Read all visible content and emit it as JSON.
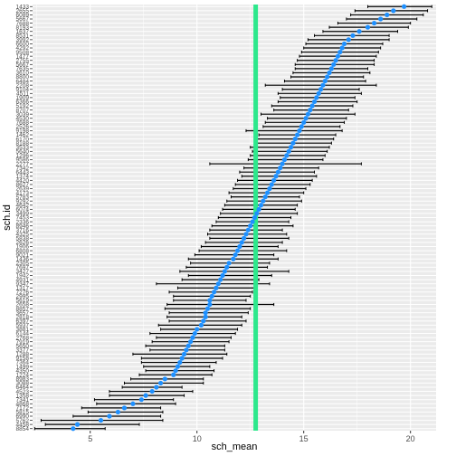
{
  "chart_data": {
    "type": "errorbar-dot",
    "xlabel": "sch_mean",
    "ylabel": "sch.id",
    "xlim": [
      2.3,
      21.2
    ],
    "x_ticks": [
      5,
      10,
      15,
      20
    ],
    "x_tick_labels": [
      "5",
      "10",
      "15",
      "20"
    ],
    "reference_line": {
      "x": 12.75,
      "orientation": "vertical"
    },
    "colors": {
      "panel": "#ebebeb",
      "grid": "#ffffff",
      "point": "#1e90ff",
      "errorbar": "#000000",
      "reference_line": "#2de88c"
    },
    "grid": true,
    "legend": "none",
    "schools": [
      {
        "id": "8854",
        "mean": 4.2,
        "lo": 2.4,
        "hi": 5.7
      },
      {
        "id": "4458",
        "mean": 4.4,
        "lo": 2.9,
        "hi": 7.3
      },
      {
        "id": "5762",
        "mean": 5.5,
        "lo": 2.7,
        "hi": 8.4
      },
      {
        "id": "6990",
        "mean": 5.9,
        "lo": 4.2,
        "hi": 8.3
      },
      {
        "id": "5815",
        "mean": 6.3,
        "lo": 4.9,
        "hi": 8.4
      },
      {
        "id": "7172",
        "mean": 6.6,
        "lo": 4.6,
        "hi": 8.3
      },
      {
        "id": "4868",
        "mean": 7.0,
        "lo": 5.3,
        "hi": 9.0
      },
      {
        "id": "7341",
        "mean": 7.4,
        "lo": 5.2,
        "hi": 8.9
      },
      {
        "id": "1358",
        "mean": 7.6,
        "lo": 5.9,
        "hi": 9.4
      },
      {
        "id": "4523",
        "mean": 7.9,
        "lo": 5.9,
        "hi": 9.8
      },
      {
        "id": "6464",
        "mean": 8.1,
        "lo": 6.5,
        "hi": 9.3
      },
      {
        "id": "3088",
        "mean": 8.3,
        "lo": 6.6,
        "hi": 10.3
      },
      {
        "id": "8983",
        "mean": 8.5,
        "lo": 6.9,
        "hi": 10.3
      },
      {
        "id": "1224",
        "mean": 8.9,
        "lo": 7.3,
        "hi": 10.7
      },
      {
        "id": "4350",
        "mean": 9.0,
        "lo": 7.6,
        "hi": 10.8
      },
      {
        "id": "1499",
        "mean": 9.1,
        "lo": 7.5,
        "hi": 10.6
      },
      {
        "id": "7364",
        "mean": 9.2,
        "lo": 7.4,
        "hi": 10.9
      },
      {
        "id": "9158",
        "mean": 9.3,
        "lo": 7.4,
        "hi": 11.2
      },
      {
        "id": "1288",
        "mean": 9.4,
        "lo": 7.0,
        "hi": 11.4
      },
      {
        "id": "3377",
        "mean": 9.5,
        "lo": 7.8,
        "hi": 11.3
      },
      {
        "id": "5650",
        "mean": 9.6,
        "lo": 7.6,
        "hi": 11.3
      },
      {
        "id": "7919",
        "mean": 9.7,
        "lo": 7.9,
        "hi": 11.5
      },
      {
        "id": "2768",
        "mean": 9.8,
        "lo": 8.1,
        "hi": 11.6
      },
      {
        "id": "6144",
        "mean": 9.9,
        "lo": 7.8,
        "hi": 11.8
      },
      {
        "id": "3881",
        "mean": 10.0,
        "lo": 8.3,
        "hi": 11.9
      },
      {
        "id": "5937",
        "mean": 10.2,
        "lo": 8.2,
        "hi": 12.1
      },
      {
        "id": "6397",
        "mean": 10.3,
        "lo": 8.7,
        "hi": 12.3
      },
      {
        "id": "2818",
        "mean": 10.4,
        "lo": 8.6,
        "hi": 12.1
      },
      {
        "id": "3657",
        "mean": 10.4,
        "lo": 8.7,
        "hi": 12.4
      },
      {
        "id": "8857",
        "mean": 10.5,
        "lo": 8.5,
        "hi": 12.5
      },
      {
        "id": "2658",
        "mean": 10.6,
        "lo": 8.6,
        "hi": 13.6
      },
      {
        "id": "5619",
        "mean": 10.6,
        "lo": 8.9,
        "hi": 12.3
      },
      {
        "id": "2995",
        "mean": 10.7,
        "lo": 8.9,
        "hi": 12.5
      },
      {
        "id": "7276",
        "mean": 10.8,
        "lo": 8.7,
        "hi": 12.6
      },
      {
        "id": "1317",
        "mean": 10.9,
        "lo": 9.1,
        "hi": 12.8
      },
      {
        "id": "9347",
        "mean": 11.0,
        "lo": 8.1,
        "hi": 13.4
      },
      {
        "id": "4931",
        "mean": 11.1,
        "lo": 9.3,
        "hi": 12.9
      },
      {
        "id": "1942",
        "mean": 11.2,
        "lo": 9.6,
        "hi": 13.5
      },
      {
        "id": "3427",
        "mean": 11.3,
        "lo": 9.2,
        "hi": 14.3
      },
      {
        "id": "7697",
        "mean": 11.4,
        "lo": 9.5,
        "hi": 13.3
      },
      {
        "id": "2305",
        "mean": 11.5,
        "lo": 9.7,
        "hi": 13.4
      },
      {
        "id": "1436",
        "mean": 11.7,
        "lo": 9.6,
        "hi": 13.8
      },
      {
        "id": "9021",
        "mean": 11.8,
        "lo": 9.9,
        "hi": 13.6
      },
      {
        "id": "6808",
        "mean": 11.9,
        "lo": 10.1,
        "hi": 14.2
      },
      {
        "id": "1906",
        "mean": 12.0,
        "lo": 10.2,
        "hi": 13.8
      },
      {
        "id": "2626",
        "mean": 12.1,
        "lo": 10.4,
        "hi": 14.0
      },
      {
        "id": "5838",
        "mean": 12.2,
        "lo": 10.6,
        "hi": 14.3
      },
      {
        "id": "4325",
        "mean": 12.3,
        "lo": 10.5,
        "hi": 14.2
      },
      {
        "id": "3716",
        "mean": 12.4,
        "lo": 10.6,
        "hi": 14.0
      },
      {
        "id": "8946",
        "mean": 12.5,
        "lo": 10.7,
        "hi": 14.5
      },
      {
        "id": "2336",
        "mean": 12.6,
        "lo": 10.9,
        "hi": 14.3
      },
      {
        "id": "7453",
        "mean": 12.7,
        "lo": 11.0,
        "hi": 14.4
      },
      {
        "id": "3499",
        "mean": 12.8,
        "lo": 11.1,
        "hi": 14.7
      },
      {
        "id": "6074",
        "mean": 12.9,
        "lo": 11.2,
        "hi": 14.6
      },
      {
        "id": "4642",
        "mean": 13.0,
        "lo": 11.3,
        "hi": 14.7
      },
      {
        "id": "9292",
        "mean": 13.1,
        "lo": 11.4,
        "hi": 14.9
      },
      {
        "id": "5783",
        "mean": 13.2,
        "lo": 11.6,
        "hi": 14.8
      },
      {
        "id": "4173",
        "mean": 13.3,
        "lo": 11.5,
        "hi": 15.0
      },
      {
        "id": "2639",
        "mean": 13.4,
        "lo": 11.7,
        "hi": 15.1
      },
      {
        "id": "8627",
        "mean": 13.5,
        "lo": 11.8,
        "hi": 15.3
      },
      {
        "id": "4420",
        "mean": 13.6,
        "lo": 11.9,
        "hi": 15.4
      },
      {
        "id": "1374",
        "mean": 13.7,
        "lo": 12.1,
        "hi": 15.6
      },
      {
        "id": "6443",
        "mean": 13.8,
        "lo": 12.0,
        "hi": 15.5
      },
      {
        "id": "7342",
        "mean": 13.9,
        "lo": 12.2,
        "hi": 15.7
      },
      {
        "id": "2277",
        "mean": 14.0,
        "lo": 10.6,
        "hi": 17.7
      },
      {
        "id": "9586",
        "mean": 14.1,
        "lo": 12.4,
        "hi": 15.9
      },
      {
        "id": "1296",
        "mean": 14.2,
        "lo": 12.5,
        "hi": 16.0
      },
      {
        "id": "5640",
        "mean": 14.3,
        "lo": 12.6,
        "hi": 16.1
      },
      {
        "id": "3533",
        "mean": 14.4,
        "lo": 12.5,
        "hi": 16.2
      },
      {
        "id": "8188",
        "mean": 14.5,
        "lo": 12.8,
        "hi": 16.3
      },
      {
        "id": "6170",
        "mean": 14.6,
        "lo": 12.7,
        "hi": 16.4
      },
      {
        "id": "1462",
        "mean": 14.7,
        "lo": 12.9,
        "hi": 16.5
      },
      {
        "id": "9198",
        "mean": 14.8,
        "lo": 12.3,
        "hi": 16.8
      },
      {
        "id": "2526",
        "mean": 14.9,
        "lo": 13.1,
        "hi": 16.7
      },
      {
        "id": "7688",
        "mean": 15.0,
        "lo": 13.2,
        "hi": 16.9
      },
      {
        "id": "4530",
        "mean": 15.1,
        "lo": 13.3,
        "hi": 17.0
      },
      {
        "id": "3039",
        "mean": 15.2,
        "lo": 13.0,
        "hi": 17.4
      },
      {
        "id": "8707",
        "mean": 15.3,
        "lo": 13.6,
        "hi": 17.1
      },
      {
        "id": "5192",
        "mean": 15.4,
        "lo": 13.5,
        "hi": 17.3
      },
      {
        "id": "6366",
        "mean": 15.5,
        "lo": 13.8,
        "hi": 17.5
      },
      {
        "id": "1909",
        "mean": 15.6,
        "lo": 13.9,
        "hi": 17.4
      },
      {
        "id": "4511",
        "mean": 15.7,
        "lo": 13.8,
        "hi": 17.7
      },
      {
        "id": "9104",
        "mean": 15.8,
        "lo": 14.0,
        "hi": 17.6
      },
      {
        "id": "2208",
        "mean": 15.9,
        "lo": 13.2,
        "hi": 18.4
      },
      {
        "id": "6484",
        "mean": 16.0,
        "lo": 14.1,
        "hi": 17.9
      },
      {
        "id": "8800",
        "mean": 16.1,
        "lo": 14.4,
        "hi": 17.8
      },
      {
        "id": "3610",
        "mean": 16.2,
        "lo": 14.5,
        "hi": 18.1
      },
      {
        "id": "7635",
        "mean": 16.3,
        "lo": 14.6,
        "hi": 18.0
      },
      {
        "id": "5667",
        "mean": 16.4,
        "lo": 14.6,
        "hi": 18.3
      },
      {
        "id": "2755",
        "mean": 16.5,
        "lo": 14.7,
        "hi": 18.3
      },
      {
        "id": "1477",
        "mean": 16.6,
        "lo": 14.8,
        "hi": 18.4
      },
      {
        "id": "9508",
        "mean": 16.7,
        "lo": 14.9,
        "hi": 18.5
      },
      {
        "id": "4292",
        "mean": 16.8,
        "lo": 15.0,
        "hi": 18.6
      },
      {
        "id": "6600",
        "mean": 16.9,
        "lo": 15.1,
        "hi": 18.7
      },
      {
        "id": "3992",
        "mean": 17.1,
        "lo": 15.2,
        "hi": 19.0
      },
      {
        "id": "8531",
        "mean": 17.3,
        "lo": 15.5,
        "hi": 19.0
      },
      {
        "id": "1637",
        "mean": 17.6,
        "lo": 15.9,
        "hi": 19.4
      },
      {
        "id": "8193",
        "mean": 18.0,
        "lo": 16.2,
        "hi": 19.9
      },
      {
        "id": "7688",
        "mean": 18.3,
        "lo": 16.6,
        "hi": 20.0
      },
      {
        "id": "5667",
        "mean": 18.6,
        "lo": 17.0,
        "hi": 20.3
      },
      {
        "id": "6089",
        "mean": 18.9,
        "lo": 17.2,
        "hi": 20.6
      },
      {
        "id": "2655",
        "mean": 19.2,
        "lo": 17.4,
        "hi": 20.8
      },
      {
        "id": "1433",
        "mean": 19.7,
        "lo": 18.0,
        "hi": 21.0
      }
    ]
  }
}
